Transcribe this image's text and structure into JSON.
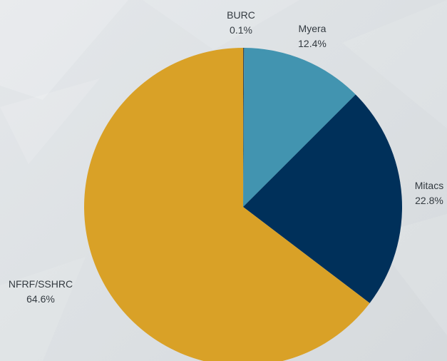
{
  "chart_data": {
    "type": "pie",
    "title": "",
    "legend": "none",
    "start_angle_deg": 0,
    "direction": "clockwise",
    "slices": [
      {
        "label": "BURC",
        "value": 0.1,
        "display": "0.1%",
        "color": "#3d4a52"
      },
      {
        "label": "Myera",
        "value": 12.4,
        "display": "12.4%",
        "color": "#4294b0"
      },
      {
        "label": "Mitacs",
        "value": 22.8,
        "display": "22.8%",
        "color": "#00305a"
      },
      {
        "label": "NFRF/SSHRC",
        "value": 64.6,
        "display": "64.6%",
        "color": "#d9a127"
      }
    ]
  }
}
